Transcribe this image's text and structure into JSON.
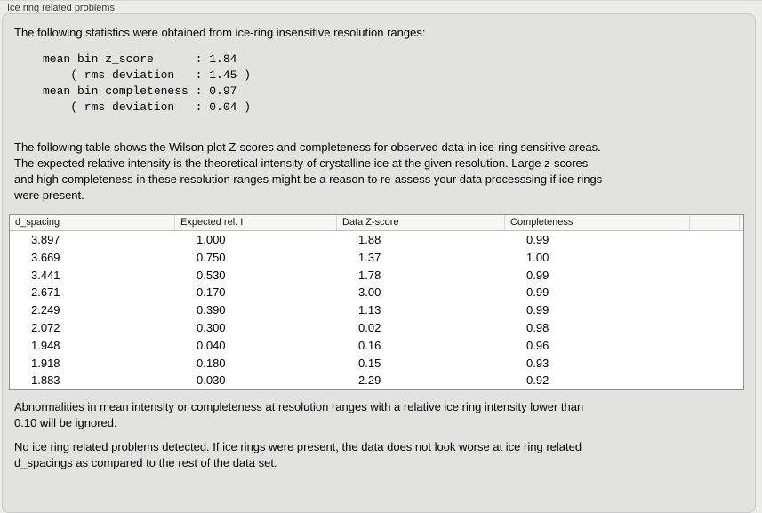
{
  "panel": {
    "title": "Ice ring related problems"
  },
  "intro_text": "The following statistics were obtained from ice-ring insensitive resolution ranges:",
  "stats_block": "mean bin z_score      : 1.84\n    ( rms deviation   : 1.45 )\nmean bin completeness : 0.97\n    ( rms deviation   : 0.04 )",
  "description_text": "The following table shows the Wilson plot Z-scores and completeness for observed data in ice-ring sensitive areas.\nThe expected relative intensity is the theoretical intensity of crystalline ice at the given resolution. Large z-scores\nand high completeness in these resolution ranges might be a reason to re-assess your data processsing if ice rings\nwere present.",
  "table": {
    "columns": [
      "d_spacing",
      "Expected rel. I",
      "Data Z-score",
      "Completeness",
      ""
    ],
    "rows": [
      [
        "3.897",
        "1.000",
        "1.88",
        "0.99"
      ],
      [
        "3.669",
        "0.750",
        "1.37",
        "1.00"
      ],
      [
        "3.441",
        "0.530",
        "1.78",
        "0.99"
      ],
      [
        "2.671",
        "0.170",
        "3.00",
        "0.99"
      ],
      [
        "2.249",
        "0.390",
        "1.13",
        "0.99"
      ],
      [
        "2.072",
        "0.300",
        "0.02",
        "0.98"
      ],
      [
        "1.948",
        "0.040",
        "0.16",
        "0.96"
      ],
      [
        "1.918",
        "0.180",
        "0.15",
        "0.93"
      ],
      [
        "1.883",
        "0.030",
        "2.29",
        "0.92"
      ]
    ]
  },
  "note_text": "Abnormalities in mean intensity or completeness at resolution ranges with a relative ice ring intensity lower than\n0.10 will be ignored.",
  "conclusion_text": "No ice ring related problems detected. If ice rings were present, the data does not look worse at ice ring related\nd_spacings as compared to the rest of the data set.",
  "colors": {
    "page_bg": "#ececeb",
    "panel_bg": "#e2e2e1",
    "table_header_bg": "#f7f7f6",
    "table_border": "#8f8f8f"
  }
}
